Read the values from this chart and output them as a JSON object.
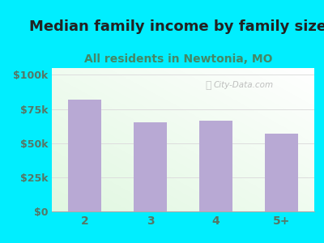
{
  "title": "Median family income by family size",
  "subtitle": "All residents in Newtonia, MO",
  "categories": [
    "2",
    "3",
    "4",
    "5+"
  ],
  "values": [
    82000,
    65000,
    66500,
    57000
  ],
  "bar_color": "#b8a9d4",
  "title_fontsize": 13,
  "subtitle_fontsize": 10,
  "ylabel_ticks": [
    0,
    25000,
    50000,
    75000,
    100000
  ],
  "ylabel_labels": [
    "$0",
    "$25k",
    "$50k",
    "$75k",
    "$100k"
  ],
  "ylim": [
    0,
    105000
  ],
  "background_outer": "#00eeff",
  "watermark": "City-Data.com",
  "tick_color": "#557766",
  "title_color": "#222222",
  "subtitle_color": "#448866",
  "grid_color": "#dddddd",
  "spine_color": "#aaaaaa"
}
